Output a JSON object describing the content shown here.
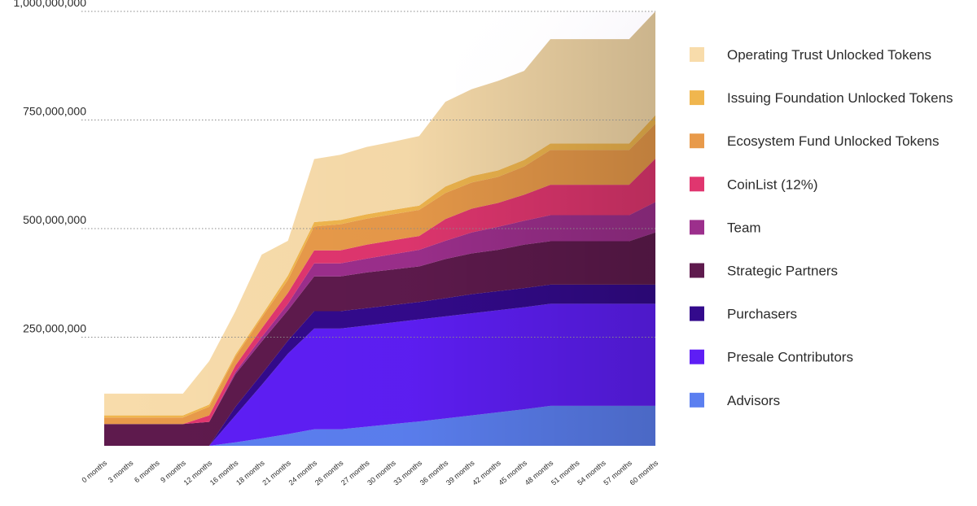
{
  "chart_data": {
    "type": "area",
    "stacked": true,
    "title": "",
    "xlabel": "",
    "ylabel": "",
    "ylim": [
      0,
      1000000000
    ],
    "grid": true,
    "legend_position": "right",
    "y_ticks": [
      {
        "value": 250000000,
        "label": "250,000,000"
      },
      {
        "value": 500000000,
        "label": "500,000,000"
      },
      {
        "value": 750000000,
        "label": "750,000,000"
      },
      {
        "value": 1000000000,
        "label": "1,000,000,000"
      }
    ],
    "categories": [
      "0 months",
      "3 months",
      "6 months",
      "9 months",
      "12 months",
      "16 months",
      "18 months",
      "21 months",
      "24 months",
      "26 months",
      "27 months",
      "30 months",
      "33 months",
      "36 months",
      "39 months",
      "42 months",
      "45 months",
      "48 months",
      "51 months",
      "54 months",
      "57 months",
      "60 months"
    ],
    "series": [
      {
        "name": "Advisors",
        "color": "#5b7ff0",
        "values": [
          0,
          0,
          0,
          0,
          0,
          8,
          17,
          27,
          38,
          38,
          44,
          50,
          56,
          63,
          70,
          77,
          84,
          92,
          92,
          92,
          92,
          92
        ]
      },
      {
        "name": "Presale Contributors",
        "color": "#5e1ef5",
        "values": [
          0,
          0,
          0,
          0,
          0,
          62,
          123,
          185,
          232,
          232,
          233,
          234,
          235,
          235,
          235,
          235,
          235,
          235,
          235,
          235,
          235,
          235
        ]
      },
      {
        "name": "Purchasers",
        "color": "#330a8c",
        "values": [
          0,
          0,
          0,
          0,
          0,
          20,
          25,
          30,
          40,
          40,
          40,
          40,
          40,
          42,
          44,
          44,
          44,
          44,
          44,
          44,
          44,
          44
        ]
      },
      {
        "name": "Strategic Partners",
        "color": "#5e1a4d",
        "values": [
          50,
          50,
          50,
          50,
          55,
          75,
          75,
          70,
          80,
          80,
          82,
          82,
          82,
          90,
          94,
          95,
          100,
          100,
          100,
          100,
          100,
          120
        ]
      },
      {
        "name": "Team",
        "color": "#9c2f8c",
        "values": [
          0,
          0,
          0,
          0,
          0,
          5,
          10,
          15,
          30,
          30,
          32,
          35,
          38,
          42,
          48,
          53,
          55,
          60,
          60,
          60,
          60,
          70
        ]
      },
      {
        "name": "CoinList (12%)",
        "color": "#e0366f",
        "values": [
          0,
          0,
          0,
          0,
          15,
          15,
          20,
          25,
          30,
          30,
          32,
          32,
          32,
          50,
          55,
          55,
          60,
          70,
          70,
          70,
          70,
          100
        ]
      },
      {
        "name": "Ecosystem Fund Unlocked Tokens",
        "color": "#e89a4a",
        "values": [
          15,
          15,
          15,
          15,
          20,
          20,
          25,
          30,
          55,
          60,
          60,
          60,
          60,
          60,
          60,
          60,
          65,
          80,
          80,
          80,
          80,
          80
        ]
      },
      {
        "name": "Issuing Foundation Unlocked Tokens",
        "color": "#f0b64e",
        "values": [
          5,
          5,
          5,
          5,
          5,
          5,
          5,
          10,
          10,
          10,
          10,
          10,
          10,
          15,
          15,
          15,
          15,
          15,
          15,
          15,
          15,
          20
        ]
      },
      {
        "name": "Operating Trust Unlocked Tokens",
        "color": "#f8dcab",
        "values": [
          50,
          50,
          50,
          50,
          100,
          100,
          140,
          80,
          145,
          150,
          155,
          157,
          160,
          195,
          200,
          206,
          205,
          240,
          240,
          240,
          240,
          239
        ]
      }
    ],
    "values_unit": "millions of tokens",
    "legend_order": [
      "Operating Trust Unlocked Tokens",
      "Issuing Foundation Unlocked Tokens",
      "Ecosystem Fund Unlocked Tokens",
      "CoinList (12%)",
      "Team",
      "Strategic Partners",
      "Purchasers",
      "Presale Contributors",
      "Advisors"
    ]
  }
}
